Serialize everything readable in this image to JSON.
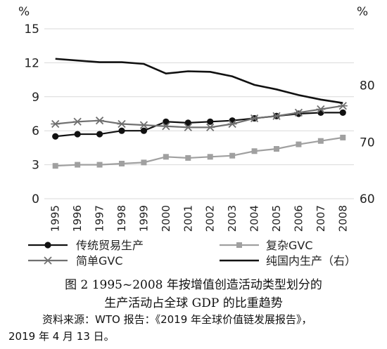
{
  "chart_data": {
    "type": "line",
    "categories": [
      "1995",
      "1996",
      "1997",
      "1998",
      "1999",
      "2000",
      "2001",
      "2002",
      "2003",
      "2004",
      "2005",
      "2006",
      "2007",
      "2008"
    ],
    "left_axis": {
      "unit": "%",
      "ylim": [
        0,
        15
      ],
      "ticks": [
        "0",
        "3",
        "6",
        "9",
        "12",
        "15"
      ]
    },
    "right_axis": {
      "unit": "%",
      "ylim": [
        60,
        90
      ],
      "ticks": [
        "60",
        "70",
        "80"
      ]
    },
    "series": [
      {
        "name": "传统贸易生产",
        "axis": "left",
        "marker": "circle",
        "color": "#111111",
        "values": [
          5.5,
          5.7,
          5.7,
          6.0,
          6.0,
          6.8,
          6.7,
          6.8,
          6.9,
          7.1,
          7.3,
          7.5,
          7.6,
          7.6
        ]
      },
      {
        "name": "复杂GVC",
        "axis": "left",
        "marker": "square",
        "color": "#a0a0a0",
        "values": [
          2.9,
          3.0,
          3.0,
          3.1,
          3.2,
          3.7,
          3.6,
          3.7,
          3.8,
          4.2,
          4.4,
          4.8,
          5.1,
          5.4
        ]
      },
      {
        "name": "简单GVC",
        "axis": "left",
        "marker": "star",
        "color": "#707070",
        "values": [
          6.6,
          6.8,
          6.9,
          6.6,
          6.5,
          6.4,
          6.3,
          6.3,
          6.6,
          7.1,
          7.3,
          7.6,
          7.9,
          8.2
        ]
      },
      {
        "name": "纯国内生产（右）",
        "axis": "right",
        "marker": "none",
        "color": "#111111",
        "values": [
          84.7,
          84.4,
          84.1,
          84.1,
          83.8,
          82.1,
          82.5,
          82.4,
          81.6,
          80.1,
          79.3,
          78.3,
          77.5,
          76.9
        ]
      }
    ]
  },
  "caption": {
    "line1": "图 2   1995~2008 年按增值创造活动类型划分的",
    "line2": "生产活动占全球 GDP 的比重趋势",
    "line3": "资料来源：WTO 报告：《2019 年全球价值链发展报告》，",
    "line4": "2019 年 4 月 13 日。"
  }
}
